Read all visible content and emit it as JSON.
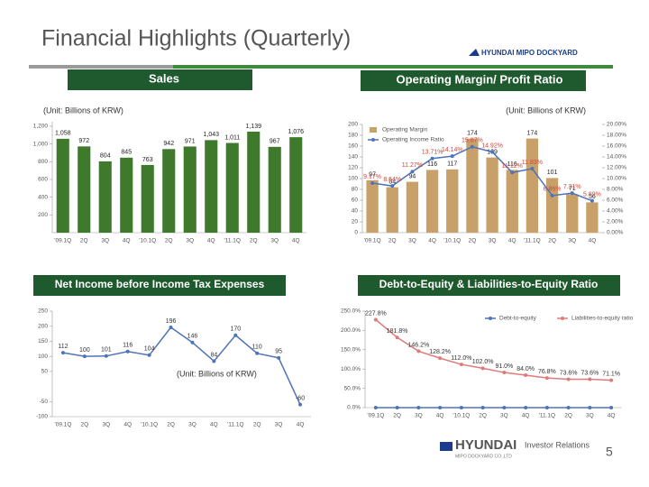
{
  "header": {
    "title": "Financial Highlights (Quarterly)",
    "logo": "HYUNDAI MIPO DOCKYARD"
  },
  "footer": {
    "brand": "HYUNDAI",
    "tagline": "Investor Relations",
    "company": "MIPO DOCKYARD CO.,LTD",
    "page": "5"
  },
  "chart_data": [
    {
      "type": "bar",
      "title": "Sales",
      "unit": "(Unit: Billions of KRW)",
      "categories": [
        "'09.1Q",
        "2Q",
        "3Q",
        "4Q",
        "'10.1Q",
        "2Q",
        "3Q",
        "4Q",
        "'11.1Q",
        "2Q",
        "3Q",
        "4Q"
      ],
      "series": [
        {
          "type": "bar",
          "color": "#3f7a2c",
          "values": [
            1058,
            972,
            804,
            845,
            763,
            942,
            971,
            1043,
            1011,
            1139,
            967,
            1076
          ],
          "value_labels": [
            "1,058",
            "972",
            "804",
            "845",
            "763",
            "942",
            "971",
            "1,043",
            "1,011",
            "1,139",
            "967",
            "1,076"
          ]
        }
      ],
      "ylim": [
        0,
        1250
      ],
      "yticks": [
        200,
        400,
        600,
        800,
        {
          "value": 1000,
          "label": "1,000"
        },
        {
          "value": 1200,
          "label": "1,200"
        }
      ],
      "grid": false
    },
    {
      "type": "combo",
      "title": "Operating Margin/ Profit Ratio",
      "unit": "(Unit: Billions of KRW)",
      "categories": [
        "'09.1Q",
        "2Q",
        "3Q",
        "4Q",
        "'10.1Q",
        "2Q",
        "3Q",
        "4Q",
        "'11.1Q",
        "2Q",
        "3Q",
        "4Q"
      ],
      "series": [
        {
          "type": "bar",
          "name": "Operating Margin",
          "color": "#c8a16a",
          "values": [
            97,
            84,
            94,
            116,
            117,
            174,
            139,
            116,
            174,
            101,
            71,
            56
          ]
        },
        {
          "type": "line",
          "name": "Operating Income Ratio",
          "color": "#4f73b8",
          "axis": "y2",
          "label_color": "#d0453a",
          "values": [
            9.17,
            8.64,
            11.27,
            13.71,
            14.14,
            15.87,
            14.92,
            11.12,
            11.83,
            6.86,
            7.31,
            5.89
          ],
          "value_labels": [
            "9.17%",
            "8.64%",
            "11.27%",
            "13.71%",
            "14.14%",
            "15.87%",
            "14.92%",
            "11.12%",
            "11.83%",
            "6.86%",
            "7.31%",
            "5.89%"
          ]
        }
      ],
      "ylim": [
        0,
        200
      ],
      "yticks": [
        0,
        20,
        40,
        60,
        80,
        100,
        120,
        140,
        160,
        180,
        200
      ],
      "y2lim": [
        0,
        20
      ],
      "y2ticks": [
        {
          "value": 0,
          "label": "0.00%"
        },
        {
          "value": 2,
          "label": "2.00%"
        },
        {
          "value": 4,
          "label": "4.00%"
        },
        {
          "value": 6,
          "label": "6.00%"
        },
        {
          "value": 8,
          "label": "8.00%"
        },
        {
          "value": 10,
          "label": "10.00%"
        },
        {
          "value": 12,
          "label": "12.00%"
        },
        {
          "value": 14,
          "label": "14.00%"
        },
        {
          "value": 16,
          "label": "16.00%"
        },
        {
          "value": 18,
          "label": "18.00%"
        },
        {
          "value": 20,
          "label": "20.00%"
        }
      ],
      "legend": "top-left",
      "grid": false
    },
    {
      "type": "line",
      "title": "Net Income before Income Tax Expenses",
      "unit": "(Unit: Billions of KRW)",
      "categories": [
        "'09.1Q",
        "2Q",
        "3Q",
        "4Q",
        "'10.1Q",
        "2Q",
        "3Q",
        "4Q",
        "'11.1Q",
        "2Q",
        "3Q",
        "4Q"
      ],
      "series": [
        {
          "type": "line",
          "color": "#4f73b8",
          "values": [
            112,
            100,
            101,
            116,
            104,
            196,
            146,
            84,
            170,
            110,
            95,
            -60
          ]
        }
      ],
      "ylim": [
        -100,
        250
      ],
      "yticks": [
        -100,
        -50,
        50,
        100,
        150,
        200,
        250
      ],
      "grid": false
    },
    {
      "type": "line",
      "title": "Debt-to-Equity & Liabilities-to-Equity Ratio",
      "categories": [
        "'09.1Q",
        "2Q",
        "3Q",
        "4Q",
        "'10.1Q",
        "2Q",
        "3Q",
        "4Q",
        "'11.1Q",
        "2Q",
        "3Q",
        "4Q"
      ],
      "series": [
        {
          "type": "line",
          "name": "Debt-to-equity",
          "color": "#4f73b8",
          "values": [
            0,
            0,
            0,
            0,
            0,
            0,
            0,
            0,
            0,
            0,
            0,
            0
          ]
        },
        {
          "type": "line",
          "name": "Liabilities-to-equity ratio",
          "color": "#e07a7a",
          "values": [
            227.8,
            181.8,
            146.2,
            128.2,
            112.0,
            102.0,
            91.0,
            84.0,
            76.8,
            73.6,
            73.6,
            71.1
          ],
          "value_labels": [
            "227.8%",
            "181.8%",
            "146.2%",
            "128.2%",
            "112.0%",
            "102.0%",
            "91.0%",
            "84.0%",
            "76.8%",
            "73.6%",
            "73.6%",
            "71.1%"
          ]
        }
      ],
      "ylim": [
        0,
        250
      ],
      "yticks": [
        {
          "value": 0,
          "label": "0.0%"
        },
        {
          "value": 50,
          "label": "50.0%"
        },
        {
          "value": 100,
          "label": "100.0%"
        },
        {
          "value": 150,
          "label": "150.0%"
        },
        {
          "value": 200,
          "label": "200.0%"
        },
        {
          "value": 250,
          "label": "250.0%"
        }
      ],
      "legend": "top-right",
      "grid": false
    }
  ]
}
